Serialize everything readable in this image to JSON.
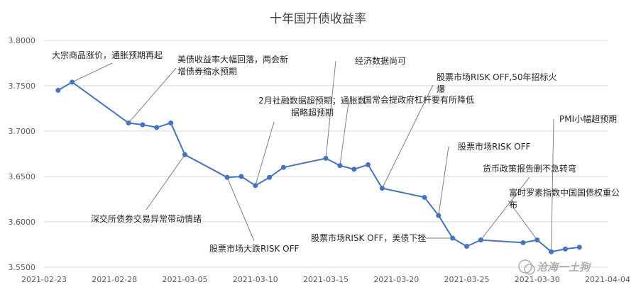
{
  "chart_data": {
    "type": "line",
    "title": "十年国开债收益率",
    "xlabel": "",
    "ylabel": "",
    "ylim": [
      3.55,
      3.8
    ],
    "y_ticks": [
      "3.5500",
      "3.6000",
      "3.6500",
      "3.7000",
      "3.7500",
      "3.8000"
    ],
    "x_ticks": [
      "2021-02-23",
      "2021-02-28",
      "2021-03-05",
      "2021-03-10",
      "2021-03-15",
      "2021-03-20",
      "2021-03-25",
      "2021-03-30",
      "2021-04-04"
    ],
    "grid": "horizontal",
    "line_color": "#4472C4",
    "series": [
      {
        "x": [
          "2021-02-24",
          "2021-02-25",
          "2021-03-01",
          "2021-03-02",
          "2021-03-03",
          "2021-03-04",
          "2021-03-05",
          "2021-03-08",
          "2021-03-09",
          "2021-03-10",
          "2021-03-11",
          "2021-03-12",
          "2021-03-15",
          "2021-03-16",
          "2021-03-17",
          "2021-03-18",
          "2021-03-19",
          "2021-03-22",
          "2021-03-23",
          "2021-03-24",
          "2021-03-25",
          "2021-03-26",
          "2021-03-29",
          "2021-03-30",
          "2021-03-31",
          "2021-04-01",
          "2021-04-02"
        ],
        "values": [
          3.745,
          3.754,
          3.709,
          3.707,
          3.704,
          3.709,
          3.674,
          3.649,
          3.65,
          3.64,
          3.649,
          3.66,
          3.67,
          3.662,
          3.658,
          3.663,
          3.637,
          3.627,
          3.607,
          3.582,
          3.573,
          3.58,
          3.577,
          3.58,
          3.567,
          3.57,
          3.572
        ]
      }
    ],
    "annotations": [
      {
        "text_lines": [
          "大宗商品涨价，通胀预期再起"
        ],
        "date": "2021-02-25"
      },
      {
        "text_lines": [
          "美债收益率大幅回落，两会新",
          "增债券缩水预期"
        ],
        "date": "2021-03-01"
      },
      {
        "text_lines": [
          "2月社融数据超预期；通胀数",
          "据略超预期"
        ],
        "date": "2021-03-10"
      },
      {
        "text_lines": [
          "经济数据尚可"
        ],
        "date": "2021-03-15"
      },
      {
        "text_lines": [
          "国常会提政府杠杆要有所降低"
        ],
        "date": "2021-03-16"
      },
      {
        "text_lines": [
          "股票市场RISK OFF,50年招标火",
          "爆"
        ],
        "date": "2021-03-19"
      },
      {
        "text_lines": [
          "股票市场RISK OFF"
        ],
        "date": "2021-03-23"
      },
      {
        "text_lines": [
          "货币政策报告删不急转弯"
        ],
        "date": "2021-03-26"
      },
      {
        "text_lines": [
          "富时罗素指数中国国债权重公",
          "布"
        ],
        "date": "2021-03-30"
      },
      {
        "text_lines": [
          "PMI小幅超预期"
        ],
        "date": "2021-03-31"
      },
      {
        "text_lines": [
          "深交所债券交易异常带动情绪"
        ],
        "date": "2021-03-05"
      },
      {
        "text_lines": [
          "股票市场大跌RISK OFF"
        ],
        "date": "2021-03-08"
      },
      {
        "text_lines": [
          "股票市场RISK OFF，美债下挫"
        ],
        "date": "2021-03-24"
      }
    ],
    "watermark": "沧海一土狗"
  }
}
